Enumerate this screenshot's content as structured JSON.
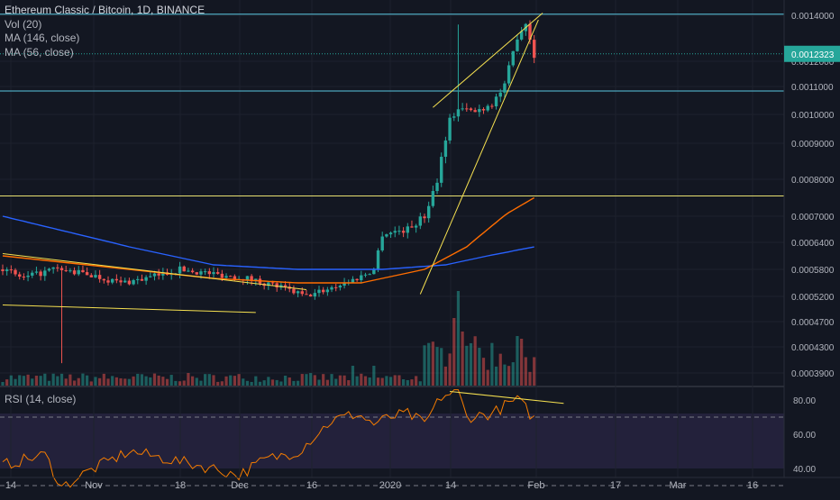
{
  "legend": {
    "title": "Ethereum Classic / Bitcoin, 1D, BINANCE",
    "vol": "Vol (20)",
    "ma1": "MA (146, close)",
    "ma2": "MA (56, close)"
  },
  "rsi_label": "RSI (14, close)",
  "price_axis_ticks": [
    "0.0014000",
    "0.0012000",
    "0.0011000",
    "0.0010000",
    "0.0009000",
    "0.0008000",
    "0.0007000",
    "0.0006400",
    "0.0005800",
    "0.0005200",
    "0.0004700",
    "0.0004300",
    "0.0003900"
  ],
  "price_axis_values": [
    0.0014,
    0.0012,
    0.0011,
    0.001,
    0.0009,
    0.0008,
    0.0007,
    0.00064,
    0.00058,
    0.00052,
    0.00047,
    0.00043,
    0.00039
  ],
  "current_price_label": "0.0012323",
  "current_price": 0.0012323,
  "rsi_axis_ticks": [
    "80.00",
    "60.00",
    "40.00"
  ],
  "rsi_axis_values": [
    80,
    60,
    40
  ],
  "date_axis_labels": [
    "14",
    "Nov",
    "18",
    "Dec",
    "16",
    "2020",
    "14",
    "Feb",
    "17",
    "Mar",
    "16"
  ],
  "colors": {
    "background": "#131722",
    "up": "#26a69a",
    "down": "#ef5350",
    "ma146": "#2962ff",
    "ma56": "#ff6d00",
    "rsi_line": "#f57c00",
    "rsi_band": "#7e57c2",
    "trend": "#f5e050",
    "hline_blue": "#58c7e0",
    "hline_yellow": "#e8e070"
  },
  "chart_data": {
    "type": "candlestick",
    "title": "Ethereum Classic / Bitcoin, 1D, BINANCE",
    "price_ylim": [
      0.00038,
      0.00144
    ],
    "rsi_ylim": [
      27,
      85
    ],
    "x_axis": [
      "14",
      "Nov",
      "18",
      "Dec",
      "16",
      "2020",
      "14",
      "Feb",
      "17",
      "Mar",
      "16"
    ],
    "price_levels": [
      0.001405,
      0.001084,
      0.000755
    ],
    "candles_anchor": [
      [
        0,
        0.00058
      ],
      [
        5,
        0.00056
      ],
      [
        12,
        0.00058
      ],
      [
        20,
        0.00057
      ],
      [
        28,
        0.00055
      ],
      [
        34,
        0.00056
      ],
      [
        42,
        0.00058
      ],
      [
        50,
        0.00057
      ],
      [
        58,
        0.00056
      ],
      [
        66,
        0.00054
      ],
      [
        72,
        0.00052
      ],
      [
        78,
        0.00054
      ],
      [
        84,
        0.00056
      ],
      [
        88,
        0.00058
      ],
      [
        90,
        0.00066
      ],
      [
        96,
        0.00067
      ],
      [
        100,
        0.0007
      ],
      [
        103,
        0.0008
      ],
      [
        106,
        0.00098
      ],
      [
        108,
        0.00102
      ],
      [
        112,
        0.00101
      ],
      [
        116,
        0.00104
      ],
      [
        119,
        0.0011
      ],
      [
        122,
        0.00131
      ],
      [
        124,
        0.00137
      ],
      [
        126,
        0.00123
      ]
    ],
    "ma146_anchor": [
      [
        0,
        0.0007
      ],
      [
        30,
        0.00063
      ],
      [
        50,
        0.00059
      ],
      [
        70,
        0.00058
      ],
      [
        90,
        0.00058
      ],
      [
        105,
        0.00059
      ],
      [
        115,
        0.00061
      ],
      [
        126,
        0.00063
      ]
    ],
    "ma56_anchor": [
      [
        0,
        0.00061
      ],
      [
        30,
        0.00058
      ],
      [
        50,
        0.00056
      ],
      [
        70,
        0.00055
      ],
      [
        85,
        0.00055
      ],
      [
        100,
        0.00058
      ],
      [
        110,
        0.00063
      ],
      [
        120,
        0.00071
      ],
      [
        126,
        0.00075
      ]
    ],
    "rsi_anchor": [
      [
        0,
        42
      ],
      [
        10,
        48
      ],
      [
        14,
        29
      ],
      [
        20,
        38
      ],
      [
        30,
        50
      ],
      [
        40,
        45
      ],
      [
        50,
        40
      ],
      [
        56,
        36
      ],
      [
        62,
        45
      ],
      [
        70,
        50
      ],
      [
        78,
        68
      ],
      [
        84,
        72
      ],
      [
        88,
        66
      ],
      [
        92,
        70
      ],
      [
        96,
        72
      ],
      [
        100,
        66
      ],
      [
        104,
        82
      ],
      [
        108,
        85
      ],
      [
        110,
        70
      ],
      [
        116,
        72
      ],
      [
        120,
        78
      ],
      [
        122,
        80
      ],
      [
        124,
        75
      ],
      [
        126,
        69
      ]
    ]
  }
}
